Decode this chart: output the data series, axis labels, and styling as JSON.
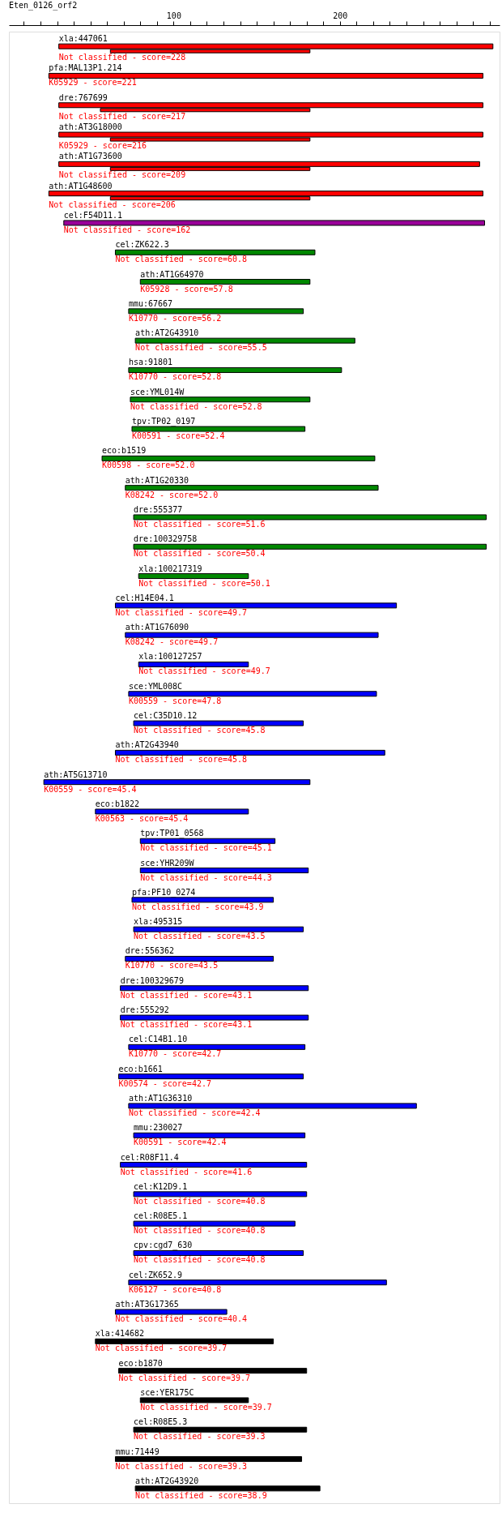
{
  "chart_data": {
    "type": "bar",
    "orientation": "horizontal",
    "title": "Eten_0126_orf2",
    "grid": false,
    "categories": [
      "xla:447061",
      "pfa:MAL13P1.214",
      "dre:767699",
      "ath:AT3G18000",
      "ath:AT1G73600",
      "ath:AT1G48600",
      "cel:F54D11.1",
      "cel:ZK622.3",
      "ath:AT1G64970",
      "mmu:67667",
      "ath:AT2G43910",
      "hsa:91801",
      "sce:YML014W",
      "tpv:TP02_0197",
      "eco:b1519",
      "ath:AT1G20330",
      "dre:555377",
      "dre:100329758",
      "xla:100217319",
      "cel:H14E04.1",
      "ath:AT1G76090",
      "xla:100127257",
      "sce:YML008C",
      "cel:C35D10.12",
      "ath:AT2G43940",
      "ath:AT5G13710",
      "eco:b1822",
      "tpv:TP01_0568",
      "sce:YHR209W",
      "pfa:PF10_0274",
      "xla:495315",
      "dre:556362",
      "dre:100329679",
      "dre:555292",
      "cel:C14B1.10",
      "eco:b1661",
      "ath:AT1G36310",
      "mmu:230027",
      "cel:R08F11.4",
      "cel:K12D9.1",
      "cel:R08E5.1",
      "cpv:cgd7_630",
      "cel:ZK652.9",
      "ath:AT3G17365",
      "xla:414682",
      "eco:b1870",
      "sce:YER175C",
      "cel:R08E5.3",
      "mmu:71449",
      "ath:AT2G43920"
    ],
    "xlim": [
      1,
      296
    ],
    "xticks": [
      {
        "value": 10,
        "label": null
      },
      {
        "value": 20,
        "label": null
      },
      {
        "value": 30,
        "label": null
      },
      {
        "value": 40,
        "label": null
      },
      {
        "value": 50,
        "label": null
      },
      {
        "value": 60,
        "label": null
      },
      {
        "value": 70,
        "label": null
      },
      {
        "value": 80,
        "label": null
      },
      {
        "value": 90,
        "label": null
      },
      100,
      {
        "value": 110,
        "label": null
      },
      {
        "value": 120,
        "label": null
      },
      {
        "value": 130,
        "label": null
      },
      {
        "value": 140,
        "label": null
      },
      {
        "value": 150,
        "label": null
      },
      {
        "value": 160,
        "label": null
      },
      {
        "value": 170,
        "label": null
      },
      {
        "value": 180,
        "label": null
      },
      {
        "value": 190,
        "label": null
      },
      200,
      {
        "value": 210,
        "label": null
      },
      {
        "value": 220,
        "label": null
      },
      {
        "value": 230,
        "label": null
      },
      {
        "value": 240,
        "label": null
      },
      {
        "value": 250,
        "label": null
      },
      {
        "value": 260,
        "label": null
      },
      {
        "value": 270,
        "label": null
      },
      {
        "value": 280,
        "label": null
      },
      {
        "value": 290,
        "label": null
      }
    ],
    "series": [
      {
        "base": [
          31,
          25,
          31,
          31,
          31,
          25,
          34,
          65,
          80,
          73,
          77,
          73,
          74,
          75,
          57,
          71,
          76,
          76,
          79,
          65,
          71,
          79,
          73,
          76,
          65,
          22,
          53,
          80,
          80,
          75,
          76,
          71,
          68,
          68,
          73,
          67,
          73,
          76,
          68,
          76,
          76,
          76,
          73,
          65,
          53,
          67,
          80,
          76,
          65,
          77
        ],
        "values": [
          261,
          261,
          255,
          255,
          253,
          261,
          253,
          120,
          102,
          105,
          132,
          128,
          108,
          104,
          164,
          152,
          212,
          212,
          66,
          169,
          152,
          66,
          149,
          102,
          162,
          160,
          92,
          81,
          101,
          85,
          102,
          89,
          113,
          113,
          106,
          111,
          173,
          103,
          112,
          104,
          97,
          102,
          155,
          67,
          107,
          113,
          65,
          104,
          112,
          111
        ],
        "colors": [
          "#ff0000",
          "#ff0000",
          "#ff0000",
          "#ff0000",
          "#ff0000",
          "#ff0000",
          "#990099",
          "#008800",
          "#008800",
          "#008800",
          "#008800",
          "#008800",
          "#008800",
          "#008800",
          "#008800",
          "#008800",
          "#008800",
          "#008800",
          "#008800",
          "#0000ff",
          "#0000ff",
          "#0000ff",
          "#0000ff",
          "#0000ff",
          "#0000ff",
          "#0000ff",
          "#0000ff",
          "#0000ff",
          "#0000ff",
          "#0000ff",
          "#0000ff",
          "#0000ff",
          "#0000ff",
          "#0000ff",
          "#0000ff",
          "#0000ff",
          "#0000ff",
          "#0000ff",
          "#0000ff",
          "#0000ff",
          "#0000ff",
          "#0000ff",
          "#0000ff",
          "#0000ff",
          "#000000",
          "#000000",
          "#000000",
          "#000000",
          "#000000",
          "#000000"
        ]
      },
      {
        "color": "#ff0000",
        "base": [
          62,
          null,
          56,
          62,
          62,
          62,
          null,
          null,
          null,
          null,
          null,
          null,
          null,
          null,
          null,
          null,
          null,
          null,
          null,
          null,
          null,
          null,
          null,
          null,
          null,
          null,
          null,
          null,
          null,
          null,
          null,
          null,
          null,
          null,
          null,
          null,
          null,
          null,
          null,
          null,
          null,
          null,
          null,
          null,
          null,
          null,
          null,
          null,
          null,
          null
        ],
        "values": [
          120,
          null,
          126,
          120,
          120,
          120,
          null,
          null,
          null,
          null,
          null,
          null,
          null,
          null,
          null,
          null,
          null,
          null,
          null,
          null,
          null,
          null,
          null,
          null,
          null,
          null,
          null,
          null,
          null,
          null,
          null,
          null,
          null,
          null,
          null,
          null,
          null,
          null,
          null,
          null,
          null,
          null,
          null,
          null,
          null,
          null,
          null,
          null,
          null,
          null
        ]
      }
    ],
    "annotations": [
      "Not classified - score=228",
      "K05929 - score=221",
      "Not classified - score=217",
      "K05929 - score=216",
      "Not classified - score=209",
      "Not classified - score=206",
      "Not classified - score=162",
      "Not classified - score=60.8",
      "K05928 - score=57.8",
      "K10770 - score=56.2",
      "Not classified - score=55.5",
      "K10770 - score=52.8",
      "Not classified - score=52.8",
      "K00591 - score=52.4",
      "K00598 - score=52.0",
      "K08242 - score=52.0",
      "Not classified - score=51.6",
      "Not classified - score=50.4",
      "Not classified - score=50.1",
      "Not classified - score=49.7",
      "K08242 - score=49.7",
      "Not classified - score=49.7",
      "K00559 - score=47.8",
      "Not classified - score=45.8",
      "Not classified - score=45.8",
      "K00559 - score=45.4",
      "K00563 - score=45.4",
      "Not classified - score=45.1",
      "Not classified - score=44.3",
      "Not classified - score=43.9",
      "Not classified - score=43.5",
      "K10770 - score=43.5",
      "Not classified - score=43.1",
      "Not classified - score=43.1",
      "K10770 - score=42.7",
      "K00574 - score=42.7",
      "Not classified - score=42.4",
      "K00591 - score=42.4",
      "Not classified - score=41.6",
      "Not classified - score=40.8",
      "Not classified - score=40.8",
      "Not classified - score=40.8",
      "K06127 - score=40.8",
      "Not classified - score=40.4",
      "Not classified - score=39.7",
      "Not classified - score=39.7",
      "Not classified - score=39.7",
      "Not classified - score=39.3",
      "Not classified - score=39.3",
      "Not classified - score=38.9"
    ]
  }
}
